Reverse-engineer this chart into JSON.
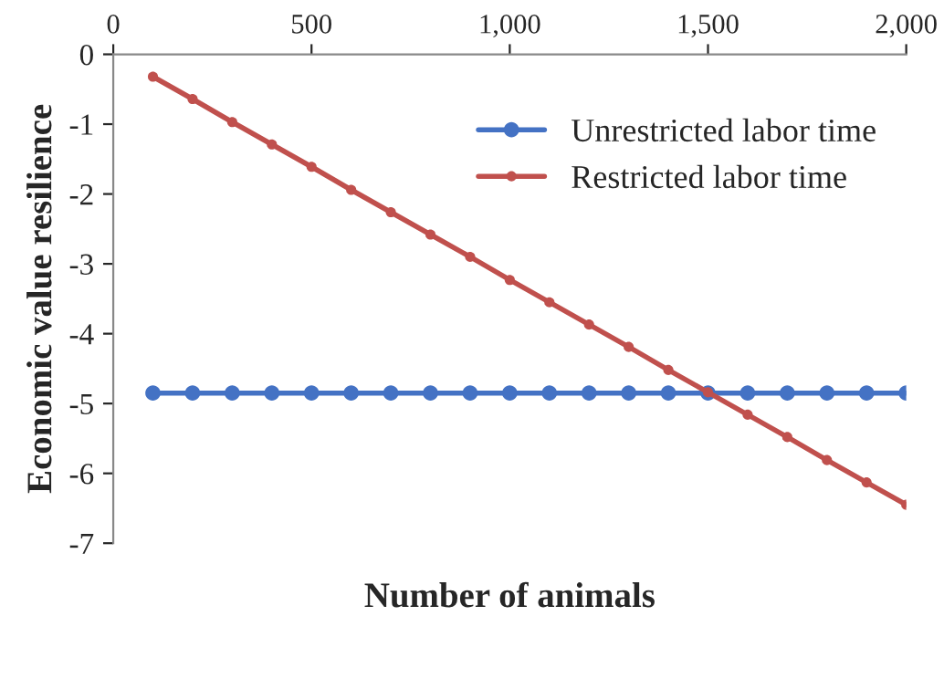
{
  "chart_data": {
    "type": "line",
    "xlabel": "Number of animals",
    "ylabel": "Economic value resilience",
    "x": [
      100,
      200,
      300,
      400,
      500,
      600,
      700,
      800,
      900,
      1000,
      1100,
      1200,
      1300,
      1400,
      1500,
      1600,
      1700,
      1800,
      1900,
      2000
    ],
    "series": [
      {
        "name": "Unrestricted labor time",
        "color": "#4472c4",
        "values": [
          -4.85,
          -4.85,
          -4.85,
          -4.85,
          -4.85,
          -4.85,
          -4.85,
          -4.85,
          -4.85,
          -4.85,
          -4.85,
          -4.85,
          -4.85,
          -4.85,
          -4.85,
          -4.85,
          -4.85,
          -4.85,
          -4.85,
          -4.85
        ]
      },
      {
        "name": "Restricted labor time",
        "color": "#c0504d",
        "values": [
          -0.32,
          -0.64,
          -0.97,
          -1.29,
          -1.61,
          -1.94,
          -2.26,
          -2.58,
          -2.9,
          -3.23,
          -3.55,
          -3.87,
          -4.19,
          -4.52,
          -4.84,
          -5.16,
          -5.48,
          -5.81,
          -6.13,
          -6.45
        ]
      }
    ],
    "xlim": [
      0,
      2000
    ],
    "xticks": [
      0,
      500,
      {
        "value": 1000,
        "label": "1,000"
      },
      {
        "value": 1500,
        "label": "1,500"
      },
      {
        "value": 2000,
        "label": "2,000"
      }
    ],
    "ylim": [
      -7,
      0
    ],
    "yticks": [
      {
        "value": -7,
        "label": "-7"
      },
      {
        "value": -6,
        "label": "-6"
      },
      {
        "value": -5,
        "label": "-5"
      },
      {
        "value": -4,
        "label": "-4"
      },
      {
        "value": -3,
        "label": "-3"
      },
      {
        "value": -2,
        "label": "-2"
      },
      {
        "value": -1,
        "label": "-1"
      },
      0
    ],
    "grid": false,
    "legend": "top right",
    "marker": "circle",
    "line_style": "solid"
  }
}
